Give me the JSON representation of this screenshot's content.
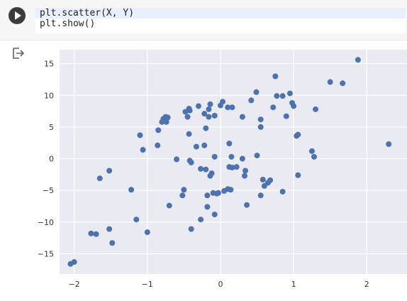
{
  "cell": {
    "code_lines": [
      "plt.scatter(X, Y)",
      "plt.show()"
    ]
  },
  "icons": {
    "run": "play-icon",
    "output": "output-redirect-icon"
  },
  "colors": {
    "marker": "#4c72b0",
    "plot_bg": "#eaeaf2",
    "grid": "#ffffff"
  },
  "chart_data": {
    "type": "scatter",
    "xlim": [
      -2.2,
      2.55
    ],
    "ylim": [
      -18.2,
      17.2
    ],
    "grid": true,
    "xticks": [
      -2,
      -1,
      0,
      1,
      2
    ],
    "xtick_labels": [
      "−2",
      "−1",
      "0",
      "1",
      "2"
    ],
    "yticks": [
      -15,
      -10,
      -5,
      0,
      5,
      10,
      15
    ],
    "ytick_labels": [
      "−15",
      "−10",
      "−5",
      "0",
      "5",
      "10",
      "15"
    ],
    "points": [
      [
        -2.05,
        -16.6
      ],
      [
        -2.0,
        -16.3
      ],
      [
        -1.77,
        -11.8
      ],
      [
        -1.7,
        -11.9
      ],
      [
        -1.65,
        -3.1
      ],
      [
        -1.52,
        -1.9
      ],
      [
        -1.52,
        -11.1
      ],
      [
        -1.48,
        -13.3
      ],
      [
        -1.22,
        -4.9
      ],
      [
        -1.15,
        -9.6
      ],
      [
        -1.1,
        3.7
      ],
      [
        -1.06,
        1.4
      ],
      [
        -1.0,
        -11.6
      ],
      [
        -0.86,
        2.1
      ],
      [
        -0.85,
        4.5
      ],
      [
        -0.8,
        5.8
      ],
      [
        -0.78,
        6.3
      ],
      [
        -0.75,
        6.6
      ],
      [
        -0.74,
        5.8
      ],
      [
        -0.72,
        6.5
      ],
      [
        -0.7,
        -7.4
      ],
      [
        -0.6,
        -0.1
      ],
      [
        -0.52,
        -5.8
      ],
      [
        -0.5,
        -4.9
      ],
      [
        -0.48,
        7.4
      ],
      [
        -0.45,
        6.6
      ],
      [
        -0.43,
        3.9
      ],
      [
        -0.43,
        7.9
      ],
      [
        -0.42,
        7.6
      ],
      [
        -0.42,
        -0.3
      ],
      [
        -0.4,
        -11.1
      ],
      [
        -0.4,
        -0.6
      ],
      [
        -0.33,
        1.9
      ],
      [
        -0.3,
        8.3
      ],
      [
        -0.27,
        -9.6
      ],
      [
        -0.27,
        -1.6
      ],
      [
        -0.22,
        7.1
      ],
      [
        -0.22,
        2.1
      ],
      [
        -0.2,
        4.8
      ],
      [
        -0.2,
        -1.7
      ],
      [
        -0.18,
        -5.8
      ],
      [
        -0.18,
        -7.6
      ],
      [
        -0.16,
        6.6
      ],
      [
        -0.16,
        7.8
      ],
      [
        -0.14,
        8.6
      ],
      [
        -0.14,
        -2.7
      ],
      [
        -0.12,
        -2.3
      ],
      [
        -0.1,
        -5.4
      ],
      [
        -0.08,
        6.8
      ],
      [
        -0.08,
        -8.8
      ],
      [
        -0.08,
        0.3
      ],
      [
        -0.05,
        -5.5
      ],
      [
        -0.03,
        -5.4
      ],
      [
        0.0,
        8.4
      ],
      [
        0.03,
        9.0
      ],
      [
        0.05,
        -5.1
      ],
      [
        0.1,
        8.1
      ],
      [
        0.1,
        -4.8
      ],
      [
        0.12,
        2.4
      ],
      [
        0.12,
        -1.3
      ],
      [
        0.14,
        -4.9
      ],
      [
        0.15,
        0.3
      ],
      [
        0.16,
        8.1
      ],
      [
        0.16,
        -1.4
      ],
      [
        0.22,
        -1.3
      ],
      [
        0.3,
        0.0
      ],
      [
        0.3,
        6.6
      ],
      [
        0.33,
        -2.7
      ],
      [
        0.34,
        -1.9
      ],
      [
        0.36,
        -7.3
      ],
      [
        0.42,
        9.2
      ],
      [
        0.49,
        10.5
      ],
      [
        0.5,
        0.5
      ],
      [
        0.55,
        -5.8
      ],
      [
        0.55,
        6.2
      ],
      [
        0.55,
        5.0
      ],
      [
        0.58,
        -3.3
      ],
      [
        0.6,
        -4.3
      ],
      [
        0.65,
        -3.8
      ],
      [
        0.68,
        -3.4
      ],
      [
        0.72,
        8.1
      ],
      [
        0.75,
        13.0
      ],
      [
        0.77,
        9.9
      ],
      [
        0.85,
        9.9
      ],
      [
        0.85,
        -5.2
      ],
      [
        0.9,
        6.7
      ],
      [
        0.95,
        10.3
      ],
      [
        0.98,
        8.8
      ],
      [
        1.0,
        8.3
      ],
      [
        1.04,
        3.6
      ],
      [
        1.06,
        3.8
      ],
      [
        1.06,
        -2.6
      ],
      [
        1.25,
        1.2
      ],
      [
        1.28,
        0.3
      ],
      [
        1.3,
        7.8
      ],
      [
        1.5,
        12.1
      ],
      [
        1.67,
        11.9
      ],
      [
        1.88,
        15.6
      ],
      [
        2.3,
        2.3
      ]
    ]
  }
}
